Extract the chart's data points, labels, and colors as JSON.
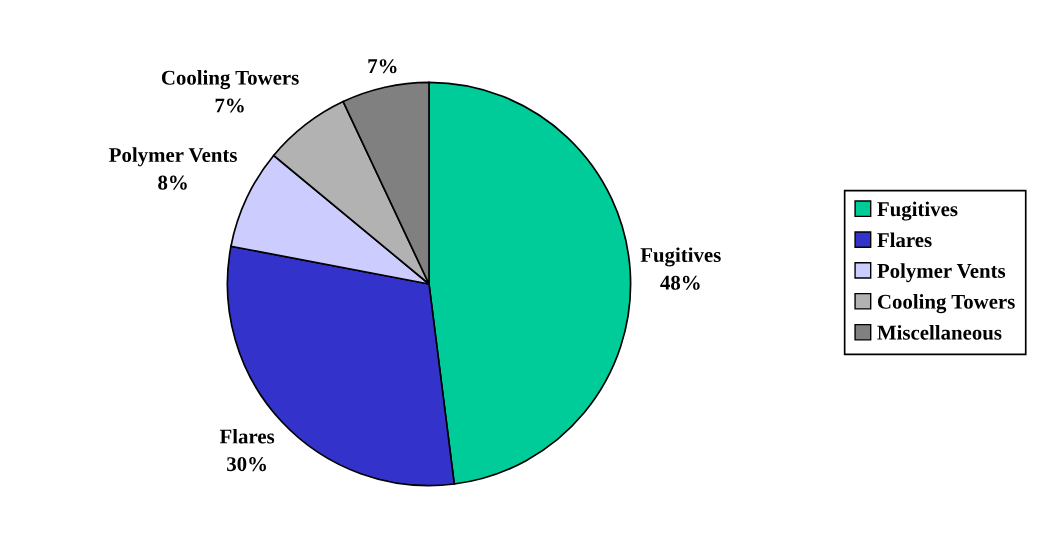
{
  "chart_data": {
    "type": "pie",
    "categories": [
      "Fugitives",
      "Flares",
      "Polymer Vents",
      "Cooling Towers",
      "Miscellaneous"
    ],
    "values": [
      48,
      30,
      8,
      7,
      7
    ],
    "colors": [
      "#00cc99",
      "#3333cc",
      "#ccccff",
      "#b2b2b2",
      "#808080"
    ],
    "value_labels": [
      "Fugitives\n48%",
      "Flares\n30%",
      "Polymer Vents\n8%",
      "Cooling Towers\n7%",
      "7%"
    ],
    "legend": "right"
  }
}
